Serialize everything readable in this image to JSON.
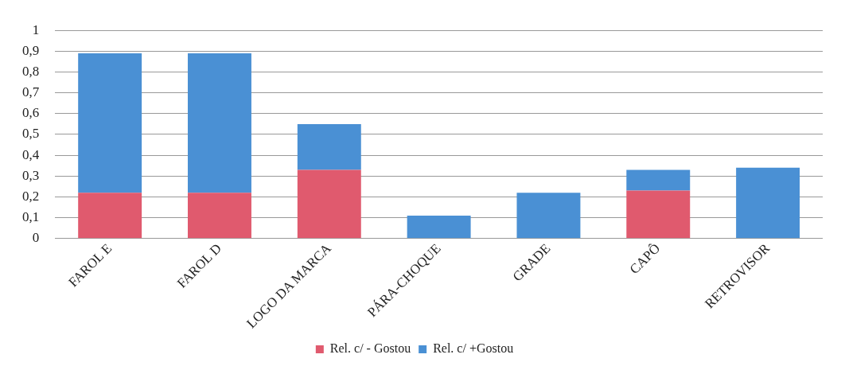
{
  "chart_data": {
    "type": "bar",
    "stacked": true,
    "categories": [
      "FAROL E",
      "FAROL D",
      "LOGO DA MARCA",
      "PÁRA-CHOQUE",
      "GRADE",
      "CAPÔ",
      "RETROVISOR"
    ],
    "series": [
      {
        "name": "Rel. c/ - Gostou",
        "color": "#e05a6e",
        "values": [
          0.22,
          0.22,
          0.33,
          0,
          0,
          0.23,
          0
        ]
      },
      {
        "name": "Rel. c/ +Gostou",
        "color": "#4a90d4",
        "values": [
          0.67,
          0.67,
          0.22,
          0.11,
          0.22,
          0.1,
          0.34
        ]
      }
    ],
    "ylim": [
      0,
      1
    ],
    "yticks": [
      0,
      {
        "value": 0.1,
        "label": "0,1"
      },
      {
        "value": 0.2,
        "label": "0,2"
      },
      {
        "value": 0.3,
        "label": "0,3"
      },
      {
        "value": 0.4,
        "label": "0,4"
      },
      {
        "value": 0.5,
        "label": "0,5"
      },
      {
        "value": 0.6,
        "label": "0,6"
      },
      {
        "value": 0.7,
        "label": "0,7"
      },
      {
        "value": 0.8,
        "label": "0,8"
      },
      {
        "value": 0.9,
        "label": "0,9"
      },
      1
    ],
    "grid": "y",
    "legend": "bottom"
  }
}
